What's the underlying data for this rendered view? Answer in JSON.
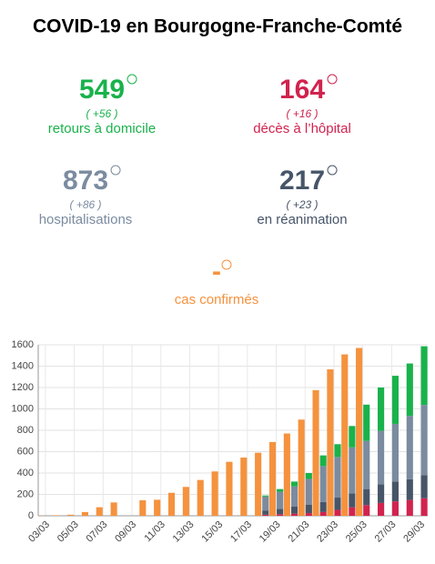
{
  "title": "COVID-19 en Bourgogne-Franche-Comté",
  "stats": [
    {
      "value": 549,
      "delta": "( +56 )",
      "label": "retours à domicile",
      "color": "#19b24b"
    },
    {
      "value": 164,
      "delta": "( +16 )",
      "label": "décès à l’hôpital",
      "color": "#d1234e"
    },
    {
      "value": 873,
      "delta": "( +86 )",
      "label": "hospitalisations",
      "color": "#7b8ba0"
    },
    {
      "value": 217,
      "delta": "( +23 )",
      "label": "en réanimation",
      "color": "#475569"
    }
  ],
  "confirmed": {
    "value": "-",
    "label": "cas confirmés",
    "color": "#f5923e"
  },
  "chart_data": {
    "type": "bar",
    "categories": [
      "03/03",
      null,
      "05/03",
      null,
      "07/03",
      null,
      "09/03",
      null,
      "11/03",
      null,
      "13/03",
      null,
      "15/03",
      null,
      "17/03",
      null,
      "19/03",
      null,
      "21/03",
      null,
      "23/03",
      null,
      "25/03",
      null,
      "27/03",
      null,
      "29/03"
    ],
    "series": [
      {
        "color": "#f5923e",
        "values": [
          2,
          5,
          10,
          35,
          80,
          125,
          null,
          145,
          150,
          215,
          270,
          335,
          415,
          505,
          545,
          590,
          690,
          770,
          900,
          1175,
          1370,
          1510,
          1570,
          null,
          null,
          null,
          null
        ]
      },
      {
        "color": "#d1234e",
        "values": [
          null,
          null,
          null,
          null,
          null,
          null,
          null,
          null,
          null,
          null,
          null,
          null,
          null,
          null,
          null,
          10,
          15,
          20,
          25,
          35,
          55,
          80,
          100,
          120,
          135,
          148,
          164
        ]
      },
      {
        "color": "#475569",
        "values": [
          null,
          null,
          null,
          null,
          null,
          null,
          null,
          null,
          null,
          null,
          null,
          null,
          null,
          null,
          null,
          40,
          50,
          65,
          80,
          95,
          115,
          130,
          150,
          175,
          185,
          194,
          217
        ]
      },
      {
        "color": "#7b8ba0",
        "values": [
          null,
          null,
          null,
          null,
          null,
          null,
          null,
          null,
          null,
          null,
          null,
          null,
          null,
          null,
          null,
          130,
          160,
          190,
          240,
          335,
          380,
          430,
          450,
          500,
          540,
          593,
          656
        ]
      },
      {
        "color": "#19b24b",
        "values": [
          null,
          null,
          null,
          null,
          null,
          null,
          null,
          null,
          null,
          null,
          null,
          null,
          null,
          null,
          null,
          10,
          25,
          45,
          55,
          100,
          120,
          200,
          340,
          405,
          450,
          490,
          549
        ]
      }
    ],
    "ylim": [
      0,
      1600
    ],
    "yticks": [
      0,
      200,
      400,
      600,
      800,
      1000,
      1200,
      1400,
      1600
    ],
    "grid": true
  }
}
